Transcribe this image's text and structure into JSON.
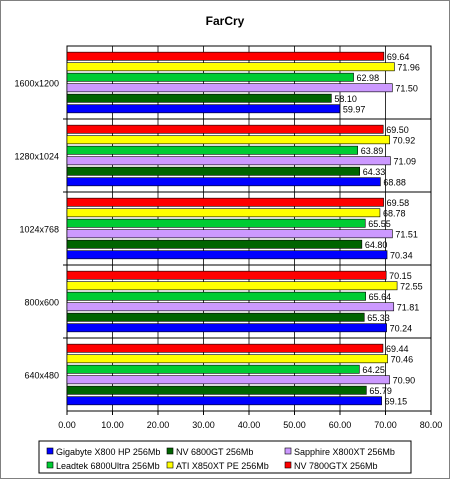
{
  "chart_data": {
    "type": "bar",
    "orientation": "horizontal",
    "title": "FarCry",
    "categories": [
      "1600x1200",
      "1280x1024",
      "1024x768",
      "800x600",
      "640x480"
    ],
    "xlim": [
      0,
      80
    ],
    "xticks": [
      "0.00",
      "10.00",
      "20.00",
      "30.00",
      "40.00",
      "50.00",
      "60.00",
      "70.00",
      "80.00"
    ],
    "grid": true,
    "legend_position": "bottom",
    "series": [
      {
        "name": "Gigabyte X800 HP 256Mb",
        "color": "#0000ff",
        "values": [
          59.97,
          68.88,
          70.34,
          70.24,
          69.15
        ],
        "labels": [
          "59.97",
          "68.88",
          "70.34",
          "70.24",
          "69.15"
        ]
      },
      {
        "name": "NV 6800GT 256Mb",
        "color": "#006400",
        "values": [
          58.1,
          64.33,
          64.8,
          65.33,
          65.79
        ],
        "labels": [
          "58.10",
          "64.33",
          "64.80",
          "65.33",
          "65.79"
        ]
      },
      {
        "name": "Sapphire X800XT 256Mb",
        "color": "#cc99ff",
        "values": [
          71.5,
          71.09,
          71.51,
          71.81,
          70.9
        ],
        "labels": [
          "71.50",
          "71.09",
          "71.51",
          "71.81",
          "70.90"
        ]
      },
      {
        "name": "Leadtek 6800Ultra 256Mb",
        "color": "#00cc33",
        "values": [
          62.98,
          63.89,
          65.55,
          65.64,
          64.25
        ],
        "labels": [
          "62.98",
          "63.89",
          "65.55",
          "65.64",
          "64.25"
        ]
      },
      {
        "name": "ATI X850XT PE 256Mb",
        "color": "#ffff00",
        "values": [
          71.96,
          70.92,
          68.78,
          72.55,
          70.46
        ],
        "labels": [
          "71.96",
          "70.92",
          "68.78",
          "72.55",
          "70.46"
        ]
      },
      {
        "name": "NV 7800GTX 256Mb",
        "color": "#ff0000",
        "values": [
          69.64,
          69.5,
          69.58,
          70.15,
          69.44
        ],
        "labels": [
          "69.64",
          "69.50",
          "69.58",
          "70.15",
          "69.44"
        ]
      }
    ]
  }
}
